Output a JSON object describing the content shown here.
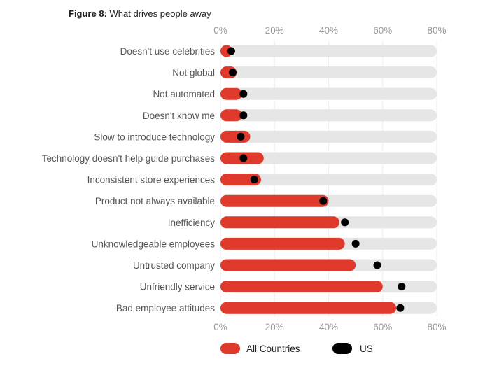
{
  "figure": {
    "number_label": "Figure 8:",
    "title": "What drives people away"
  },
  "colors": {
    "all_countries": "#e03a2c",
    "us": "#000000",
    "track": "#e6e6e6",
    "grid": "#eeeeee"
  },
  "chart_data": {
    "type": "bar",
    "title": "What drives people away",
    "xlabel": "",
    "ylabel": "",
    "xlim": [
      0,
      80
    ],
    "ticks": [
      "0%",
      "20%",
      "40%",
      "60%",
      "80%"
    ],
    "tick_values": [
      0,
      20,
      40,
      60,
      80
    ],
    "legend_position": "bottom",
    "categories": [
      "Doesn't use celebrities",
      "Not global",
      "Not automated",
      "Doesn't know me",
      "Slow to introduce technology",
      "Technology doesn't help guide purchases",
      "Inconsistent store experiences",
      "Product not always available",
      "Inefficiency",
      "Unknowledgeable employees",
      "Untrusted company",
      "Unfriendly service",
      "Bad employee attitudes"
    ],
    "series": [
      {
        "name": "All Countries",
        "values": [
          4,
          6,
          8,
          8,
          11,
          16,
          15,
          40,
          44,
          46,
          50,
          60,
          65
        ]
      },
      {
        "name": "US",
        "values": [
          4,
          4.5,
          8.5,
          8.5,
          7.5,
          8.5,
          12.5,
          38,
          46,
          50,
          58,
          67,
          66.5
        ]
      }
    ]
  }
}
